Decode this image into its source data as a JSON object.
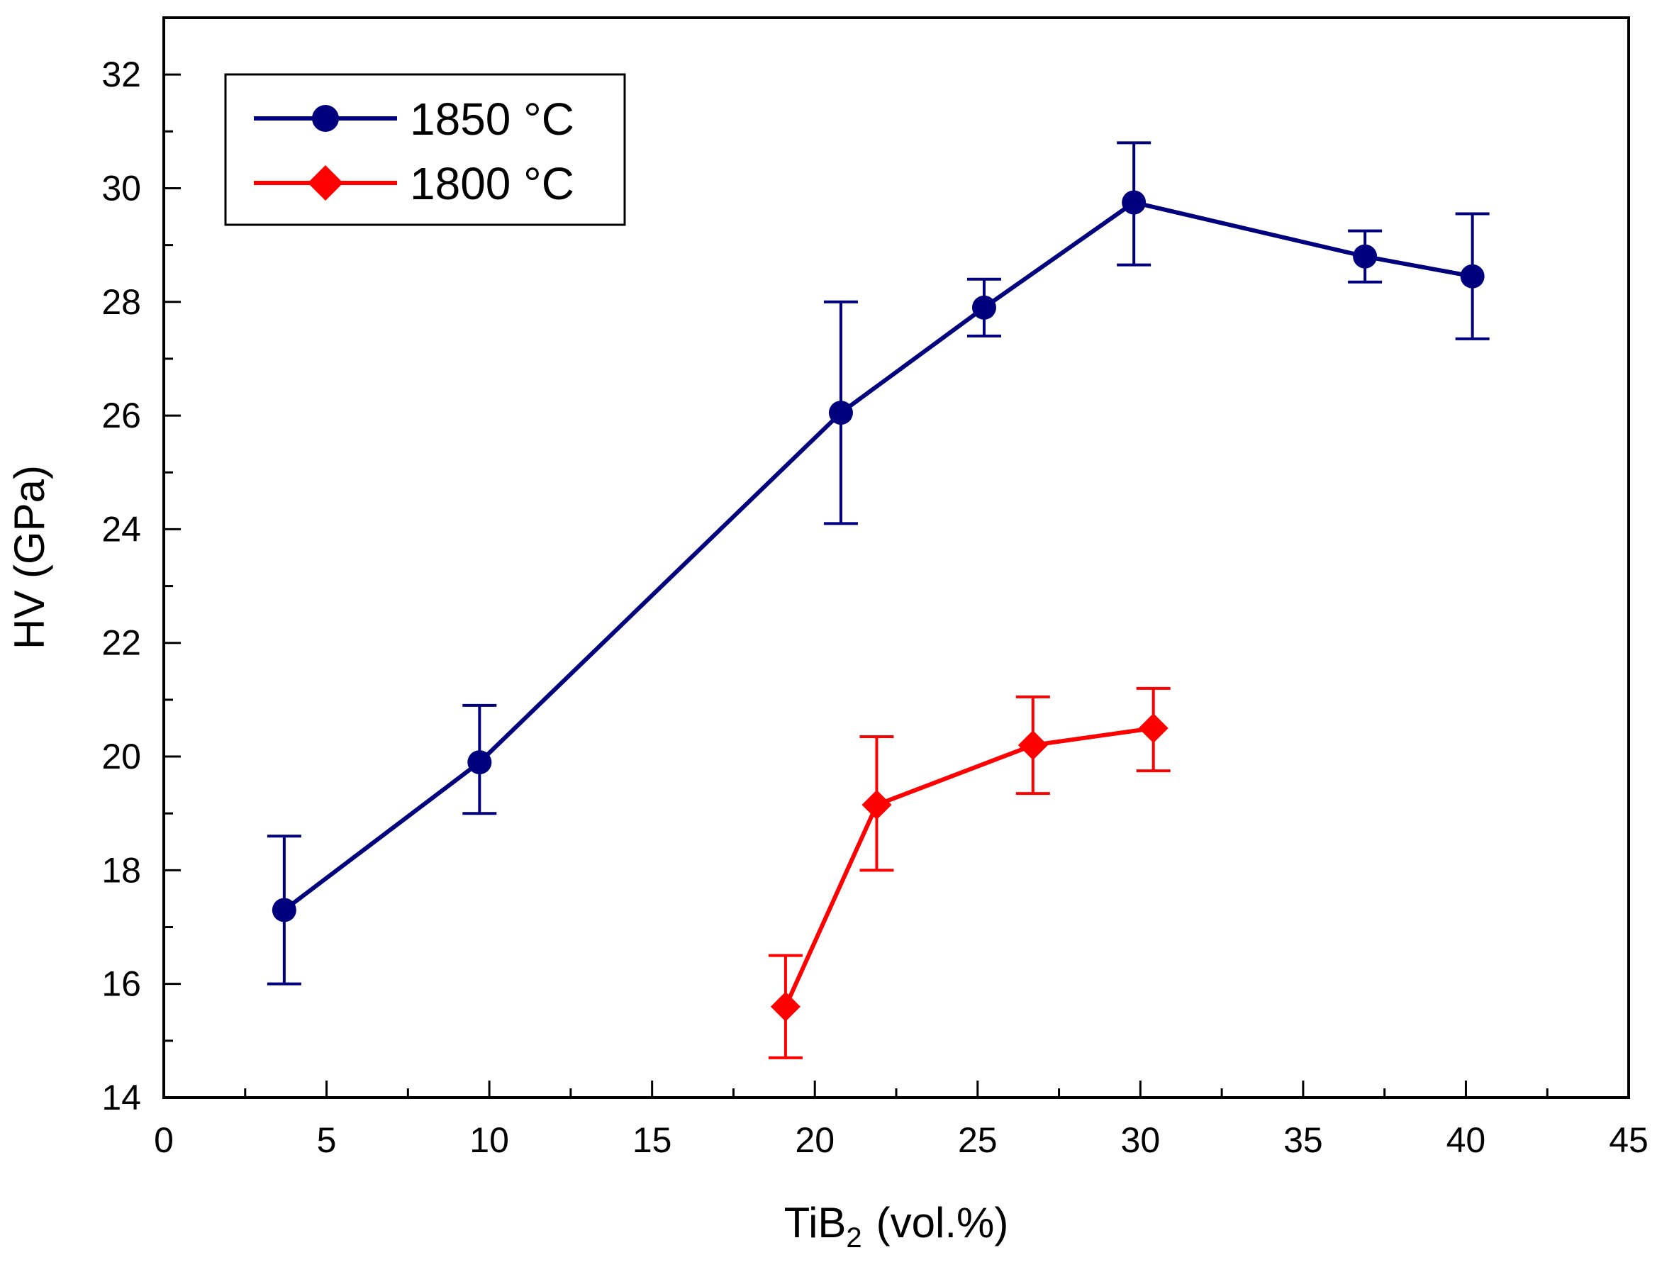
{
  "chart_data": {
    "type": "line",
    "xlabel": "TiB",
    "xlabel_subscript": "2",
    "xlabel_units": "(vol.%)",
    "ylabel": "HV  (GPa)",
    "xlim": [
      0,
      45
    ],
    "ylim": [
      14,
      33
    ],
    "x_ticks": [
      "0",
      "5",
      "10",
      "15",
      "20",
      "25",
      "30",
      "35",
      "40",
      "45"
    ],
    "y_ticks": [
      "14",
      "16",
      "18",
      "20",
      "22",
      "24",
      "26",
      "28",
      "30",
      "32"
    ],
    "x_tick_values": [
      0,
      5,
      10,
      15,
      20,
      25,
      30,
      35,
      40,
      45
    ],
    "y_tick_values": [
      14,
      16,
      18,
      20,
      22,
      24,
      26,
      28,
      30,
      32
    ],
    "legend_position": "top-left",
    "series": [
      {
        "name": "1850 °C",
        "color": "#00007f",
        "marker": "circle",
        "points": [
          {
            "x": 3.7,
            "y": 17.3,
            "err_low": 16.0,
            "err_high": 18.6
          },
          {
            "x": 9.7,
            "y": 19.9,
            "err_low": 19.0,
            "err_high": 20.9
          },
          {
            "x": 20.8,
            "y": 26.05,
            "err_low": 24.1,
            "err_high": 28.0
          },
          {
            "x": 25.2,
            "y": 27.9,
            "err_low": 27.4,
            "err_high": 28.4
          },
          {
            "x": 29.8,
            "y": 29.75,
            "err_low": 28.65,
            "err_high": 30.8
          },
          {
            "x": 36.9,
            "y": 28.8,
            "err_low": 28.35,
            "err_high": 29.25
          },
          {
            "x": 40.2,
            "y": 28.45,
            "err_low": 27.35,
            "err_high": 29.55
          }
        ]
      },
      {
        "name": "1800 °C",
        "color": "#ff0000",
        "marker": "diamond",
        "points": [
          {
            "x": 19.1,
            "y": 15.6,
            "err_low": 14.7,
            "err_high": 16.5
          },
          {
            "x": 21.9,
            "y": 19.15,
            "err_low": 18.0,
            "err_high": 20.35
          },
          {
            "x": 26.7,
            "y": 20.2,
            "err_low": 19.35,
            "err_high": 21.05
          },
          {
            "x": 30.4,
            "y": 20.5,
            "err_low": 19.75,
            "err_high": 21.2
          }
        ]
      }
    ]
  }
}
